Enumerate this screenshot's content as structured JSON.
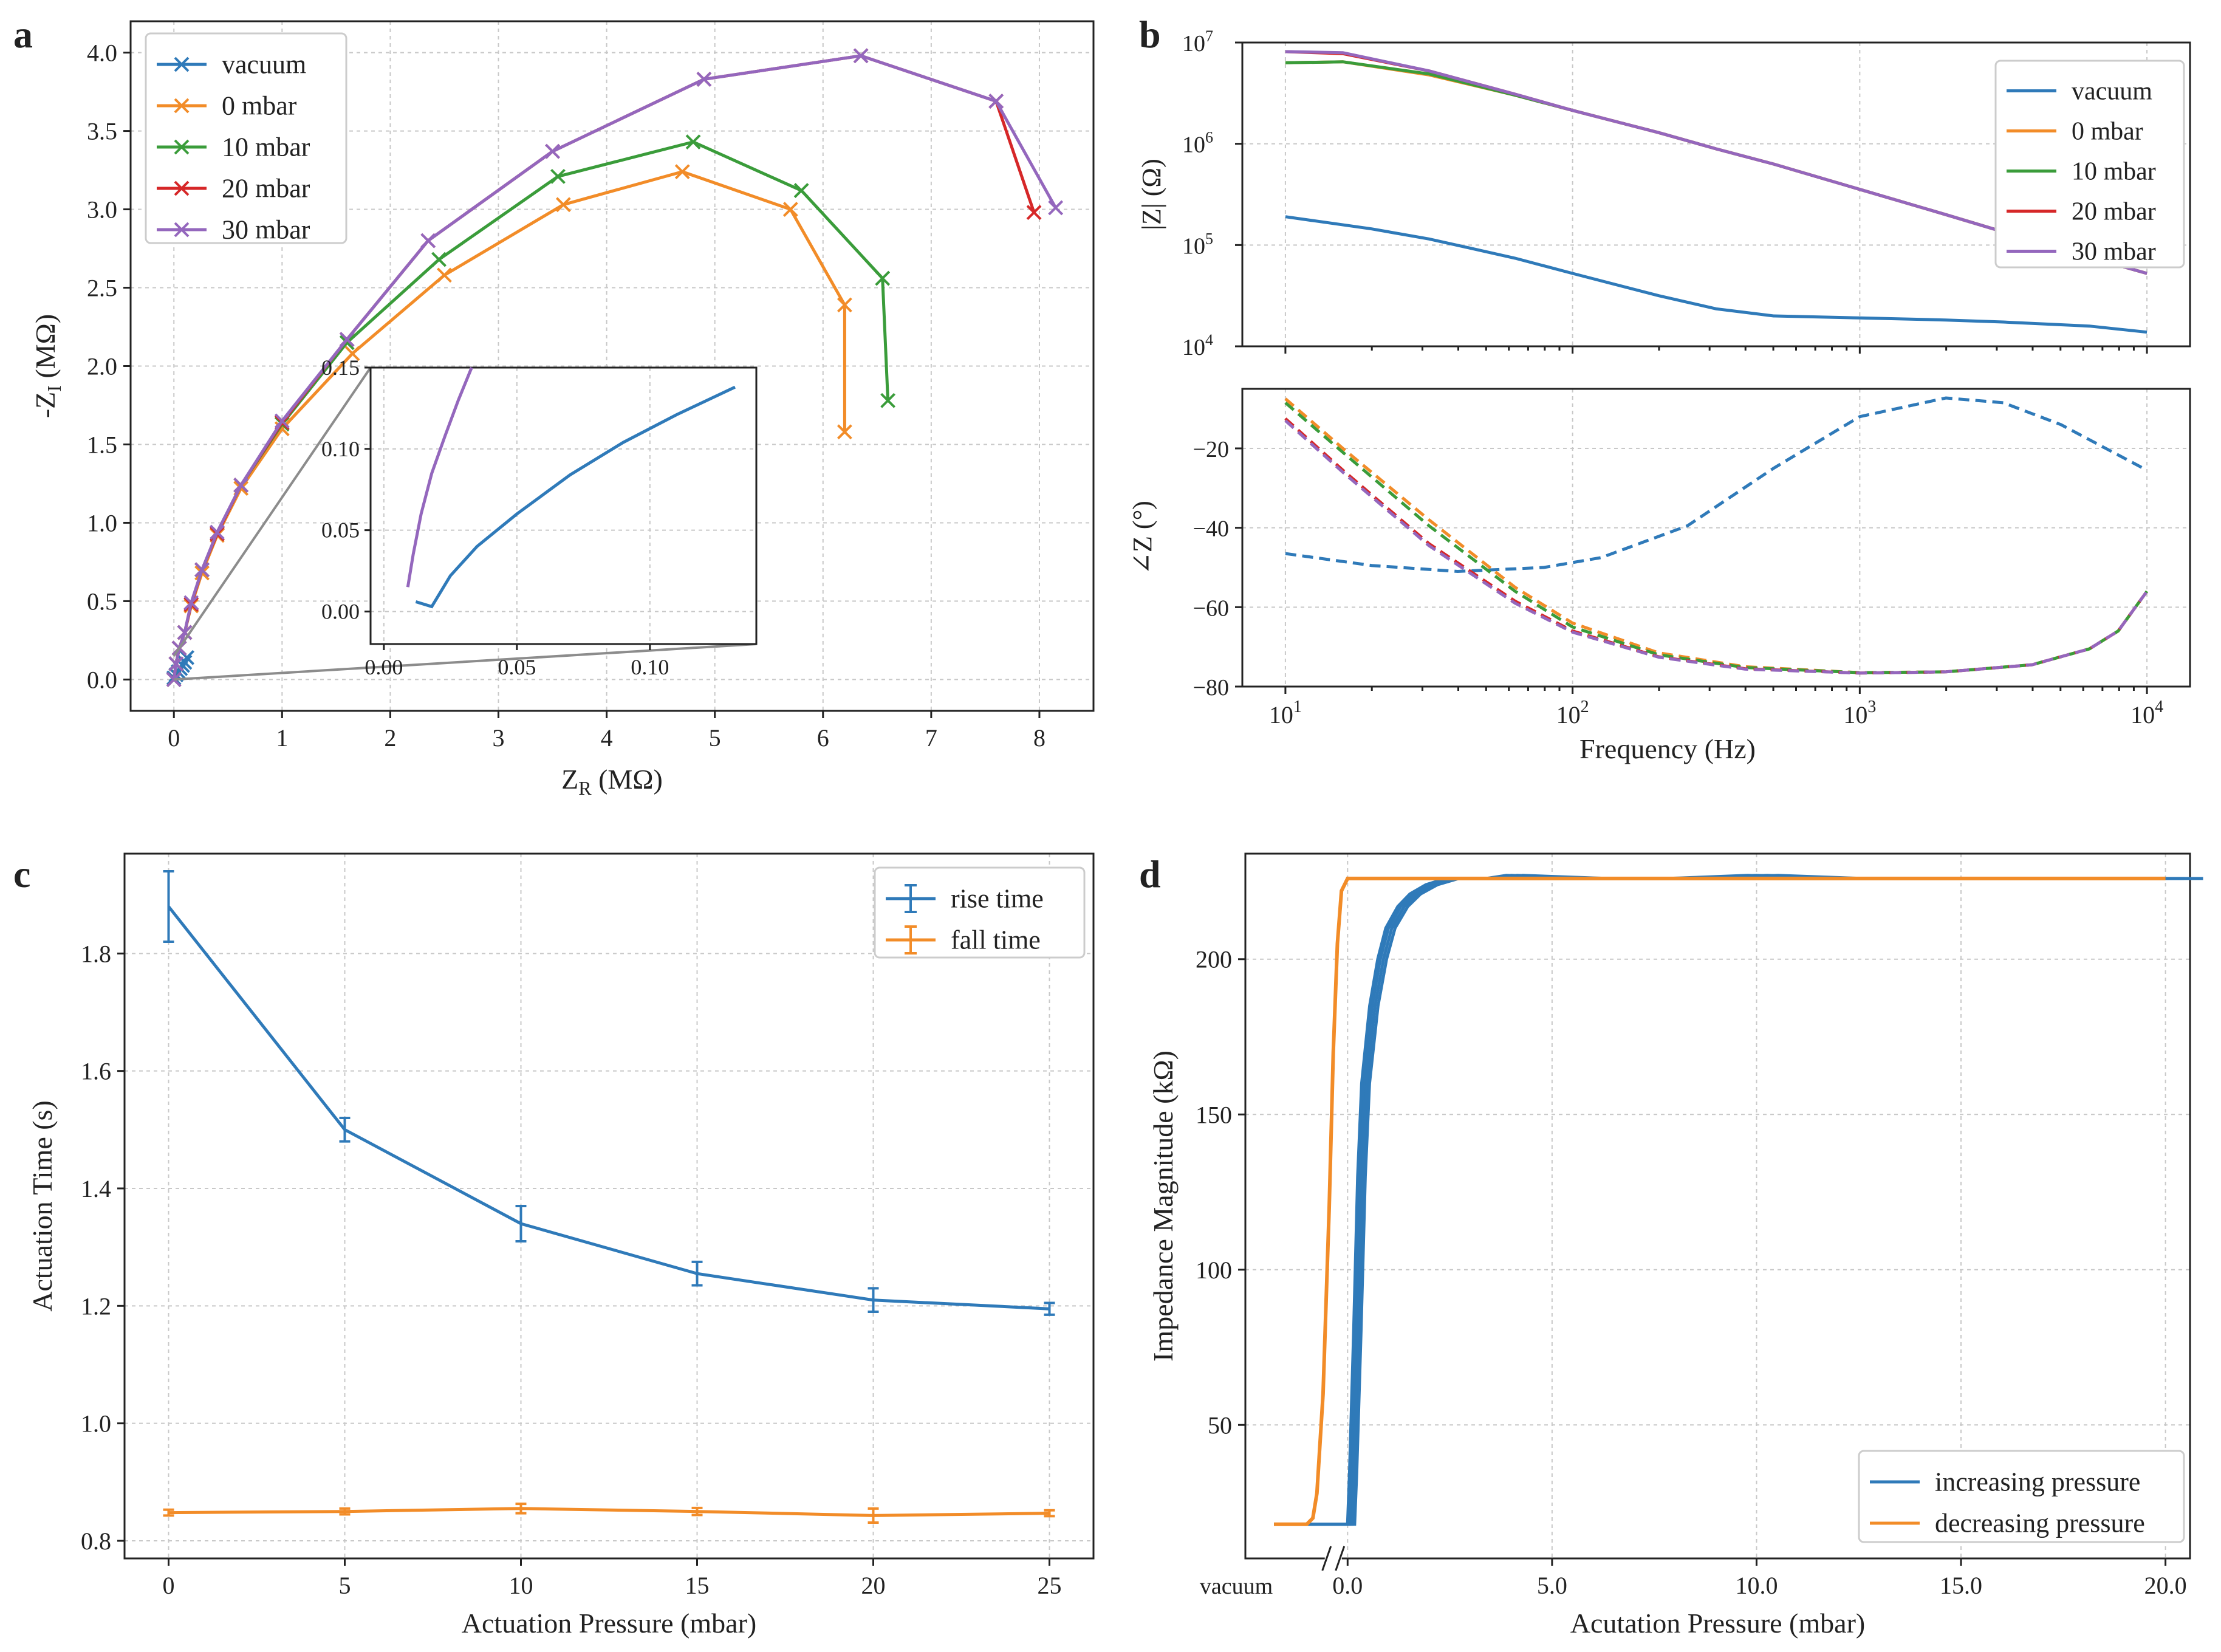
{
  "colors": {
    "blue": "#2f7ab9",
    "orange": "#f28c28",
    "green": "#3a9c3a",
    "red": "#d62728",
    "purple": "#9467bd",
    "gray": "#8c8c8c"
  },
  "chart_data": [
    {
      "panel": "a",
      "type": "line",
      "xlabel": "Z",
      "xlabel_sub": "R",
      "xlabel_unit": " (MΩ)",
      "ylabel": "-Z",
      "ylabel_sub": "I",
      "ylabel_unit": " (MΩ)",
      "xlim": [
        -0.4,
        8.5
      ],
      "ylim": [
        -0.2,
        4.2
      ],
      "xticks": [
        0,
        1,
        2,
        3,
        4,
        5,
        6,
        7,
        8
      ],
      "yticks": [
        0.0,
        0.5,
        1.0,
        1.5,
        2.0,
        2.5,
        3.0,
        3.5,
        4.0
      ],
      "xtick_labels": [
        "0",
        "1",
        "2",
        "3",
        "4",
        "5",
        "6",
        "7",
        "8"
      ],
      "ytick_labels": [
        "0.0",
        "0.5",
        "1.0",
        "1.5",
        "2.0",
        "2.5",
        "3.0",
        "3.5",
        "4.0"
      ],
      "legend_position": "top-left",
      "series": [
        {
          "name": "vacuum",
          "color": "blue",
          "x": [
            0.0,
            0.02,
            0.04,
            0.06,
            0.08,
            0.1,
            0.12
          ],
          "y": [
            0.01,
            0.03,
            0.05,
            0.07,
            0.09,
            0.11,
            0.14
          ]
        },
        {
          "name": "0 mbar",
          "color": "orange",
          "x": [
            0.0,
            0.02,
            0.05,
            0.1,
            0.16,
            0.26,
            0.4,
            0.62,
            1.0,
            1.65,
            2.5,
            3.6,
            4.7,
            5.7,
            6.2,
            6.2
          ],
          "y": [
            0.0,
            0.1,
            0.2,
            0.3,
            0.47,
            0.68,
            0.92,
            1.22,
            1.6,
            2.08,
            2.58,
            3.03,
            3.24,
            3.0,
            2.39,
            1.58
          ]
        },
        {
          "name": "10 mbar",
          "color": "green",
          "x": [
            0.0,
            0.02,
            0.05,
            0.1,
            0.16,
            0.26,
            0.4,
            0.62,
            1.0,
            1.6,
            2.45,
            3.55,
            4.8,
            5.8,
            6.55,
            6.6
          ],
          "y": [
            0.0,
            0.1,
            0.2,
            0.3,
            0.48,
            0.7,
            0.93,
            1.24,
            1.63,
            2.15,
            2.68,
            3.21,
            3.43,
            3.12,
            2.56,
            1.78
          ]
        },
        {
          "name": "20 mbar",
          "color": "red",
          "x": [
            0.0,
            0.02,
            0.05,
            0.1,
            0.16,
            0.26,
            0.4,
            0.62,
            1.0,
            1.6,
            2.35,
            3.5,
            4.9,
            6.35,
            7.6,
            7.95
          ],
          "y": [
            0.0,
            0.1,
            0.2,
            0.3,
            0.48,
            0.7,
            0.93,
            1.24,
            1.64,
            2.17,
            2.8,
            3.37,
            3.83,
            3.98,
            3.69,
            2.98
          ]
        },
        {
          "name": "30 mbar",
          "color": "purple",
          "x": [
            0.0,
            0.02,
            0.05,
            0.1,
            0.16,
            0.26,
            0.4,
            0.62,
            1.0,
            1.6,
            2.35,
            3.5,
            4.9,
            6.35,
            7.6,
            8.15
          ],
          "y": [
            0.0,
            0.1,
            0.2,
            0.3,
            0.49,
            0.7,
            0.94,
            1.24,
            1.65,
            2.17,
            2.8,
            3.37,
            3.83,
            3.98,
            3.69,
            3.01
          ]
        }
      ],
      "inset": {
        "xlim": [
          -0.005,
          0.14
        ],
        "ylim": [
          -0.02,
          0.15
        ],
        "xticks": [
          0.0,
          0.05,
          0.1
        ],
        "yticks": [
          0.0,
          0.05,
          0.1,
          0.15
        ],
        "xtick_labels": [
          "0.00",
          "0.05",
          "0.10"
        ],
        "ytick_labels": [
          "0.00",
          "0.05",
          "0.10",
          "0.15"
        ],
        "zoom_region_x": [
          0.0,
          0.14
        ],
        "zoom_region_y": [
          0.0,
          0.15
        ],
        "series": [
          {
            "name": "30 mbar",
            "color": "purple",
            "x": [
              0.009,
              0.011,
              0.014,
              0.018,
              0.023,
              0.028,
              0.033
            ],
            "y": [
              0.015,
              0.035,
              0.06,
              0.085,
              0.108,
              0.13,
              0.15
            ]
          },
          {
            "name": "vacuum",
            "color": "blue",
            "x": [
              0.012,
              0.018,
              0.025,
              0.035,
              0.05,
              0.07,
              0.09,
              0.11,
              0.132
            ],
            "y": [
              0.006,
              0.003,
              0.022,
              0.04,
              0.06,
              0.084,
              0.104,
              0.121,
              0.138
            ]
          }
        ]
      }
    },
    {
      "panel": "b",
      "type": "line",
      "subplots": [
        {
          "ylabel": "|Z| (Ω)",
          "yscale": "log",
          "ylim_log10": [
            4,
            7
          ],
          "yticks_log10": [
            4,
            5,
            6,
            7
          ],
          "ytick_labels": [
            "10",
            "10",
            "10",
            "10"
          ],
          "ytick_exponents": [
            "4",
            "5",
            "6",
            "7"
          ],
          "legend_position": "top-right",
          "series": [
            {
              "name": "vacuum",
              "color": "blue",
              "x_log10": [
                1.0,
                1.3,
                1.5,
                1.8,
                2.0,
                2.3,
                2.5,
                2.7,
                3.0,
                3.3,
                3.5,
                3.8,
                4.0
              ],
              "y_log10": [
                5.28,
                5.16,
                5.06,
                4.87,
                4.72,
                4.5,
                4.37,
                4.3,
                4.28,
                4.26,
                4.24,
                4.2,
                4.14
              ]
            },
            {
              "name": "0 mbar",
              "color": "orange",
              "x_log10": [
                1.0,
                1.2,
                1.5,
                1.8,
                2.0,
                2.3,
                2.5,
                2.7,
                3.0,
                3.3,
                3.5,
                3.8,
                4.0
              ],
              "y_log10": [
                6.8,
                6.81,
                6.68,
                6.48,
                6.33,
                6.11,
                5.95,
                5.8,
                5.55,
                5.3,
                5.13,
                4.88,
                4.72
              ]
            },
            {
              "name": "10 mbar",
              "color": "green",
              "x_log10": [
                1.0,
                1.2,
                1.5,
                1.8,
                2.0,
                2.3,
                2.5,
                2.7,
                3.0,
                3.3,
                3.5,
                3.8,
                4.0
              ],
              "y_log10": [
                6.8,
                6.81,
                6.69,
                6.48,
                6.33,
                6.11,
                5.95,
                5.8,
                5.55,
                5.3,
                5.13,
                4.88,
                4.72
              ]
            },
            {
              "name": "20 mbar",
              "color": "red",
              "x_log10": [
                1.0,
                1.2,
                1.5,
                1.8,
                2.0,
                2.3,
                2.5,
                2.7,
                3.0,
                3.3,
                3.5,
                3.8,
                4.0
              ],
              "y_log10": [
                6.91,
                6.89,
                6.72,
                6.49,
                6.33,
                6.11,
                5.95,
                5.8,
                5.55,
                5.3,
                5.13,
                4.88,
                4.72
              ]
            },
            {
              "name": "30 mbar",
              "color": "purple",
              "x_log10": [
                1.0,
                1.2,
                1.5,
                1.8,
                2.0,
                2.3,
                2.5,
                2.7,
                3.0,
                3.3,
                3.5,
                3.8,
                4.0
              ],
              "y_log10": [
                6.91,
                6.9,
                6.72,
                6.49,
                6.33,
                6.11,
                5.95,
                5.8,
                5.55,
                5.3,
                5.13,
                4.88,
                4.72
              ]
            }
          ]
        },
        {
          "ylabel": "∠Z (°)",
          "ylim": [
            -80,
            -5
          ],
          "yticks": [
            -80,
            -60,
            -40,
            -20
          ],
          "ytick_labels": [
            "−80",
            "−60",
            "−40",
            "−20"
          ],
          "line_style": "dashed",
          "series": [
            {
              "name": "vacuum",
              "color": "blue",
              "x_log10": [
                1.0,
                1.3,
                1.6,
                1.9,
                2.1,
                2.4,
                2.7,
                3.0,
                3.3,
                3.5,
                3.7,
                4.0
              ],
              "y": [
                -46.5,
                -49.5,
                -51,
                -50,
                -47.5,
                -39.5,
                -25,
                -12,
                -7.3,
                -8.5,
                -14,
                -25.5
              ]
            },
            {
              "name": "0 mbar",
              "color": "orange",
              "x_log10": [
                1.0,
                1.2,
                1.5,
                1.8,
                2.0,
                2.3,
                2.6,
                3.0,
                3.3,
                3.6,
                3.8,
                3.9,
                4.0
              ],
              "y": [
                -7.5,
                -20,
                -38,
                -55,
                -64,
                -71.5,
                -75,
                -76.5,
                -76.3,
                -74.5,
                -70.5,
                -66,
                -56
              ]
            },
            {
              "name": "10 mbar",
              "color": "green",
              "x_log10": [
                1.0,
                1.2,
                1.5,
                1.8,
                2.0,
                2.3,
                2.6,
                3.0,
                3.3,
                3.6,
                3.8,
                3.9,
                4.0
              ],
              "y": [
                -8.5,
                -21,
                -39.5,
                -56,
                -65,
                -72,
                -75.2,
                -76.5,
                -76.3,
                -74.5,
                -70.5,
                -66,
                -56
              ]
            },
            {
              "name": "20 mbar",
              "color": "red",
              "x_log10": [
                1.0,
                1.2,
                1.5,
                1.8,
                2.0,
                2.3,
                2.6,
                3.0,
                3.3,
                3.6,
                3.8,
                3.9,
                4.0
              ],
              "y": [
                -12.5,
                -25.5,
                -44,
                -58.5,
                -66,
                -72.5,
                -75.5,
                -76.6,
                -76.3,
                -74.5,
                -70.5,
                -66,
                -56
              ]
            },
            {
              "name": "30 mbar",
              "color": "purple",
              "x_log10": [
                1.0,
                1.2,
                1.5,
                1.8,
                2.0,
                2.3,
                2.6,
                3.0,
                3.3,
                3.6,
                3.8,
                3.9,
                4.0
              ],
              "y": [
                -13,
                -26,
                -44.5,
                -59,
                -66.3,
                -72.6,
                -75.6,
                -76.6,
                -76.3,
                -74.5,
                -70.5,
                -66,
                -56
              ]
            }
          ]
        }
      ],
      "xlabel": "Frequency (Hz)",
      "xscale": "log",
      "xlim_log10": [
        0.85,
        4.15
      ],
      "xticks_log10": [
        1,
        2,
        3,
        4
      ],
      "xtick_labels": [
        "10",
        "10",
        "10",
        "10"
      ],
      "xtick_exponents": [
        "1",
        "2",
        "3",
        "4"
      ]
    },
    {
      "panel": "c",
      "type": "line",
      "xlabel": "Actuation Pressure (mbar)",
      "ylabel": "Actuation Time (s)",
      "xlim": [
        -1.25,
        26.25
      ],
      "ylim": [
        0.77,
        1.97
      ],
      "xticks": [
        0,
        5,
        10,
        15,
        20,
        25
      ],
      "yticks": [
        0.8,
        1.0,
        1.2,
        1.4,
        1.6,
        1.8
      ],
      "xtick_labels": [
        "0",
        "5",
        "10",
        "15",
        "20",
        "25"
      ],
      "ytick_labels": [
        "0.8",
        "1.0",
        "1.2",
        "1.4",
        "1.6",
        "1.8"
      ],
      "legend_position": "top-right",
      "series": [
        {
          "name": "rise time",
          "color": "blue",
          "x": [
            0,
            5,
            10,
            15,
            20,
            25
          ],
          "y": [
            1.88,
            1.5,
            1.34,
            1.255,
            1.21,
            1.195
          ],
          "err": [
            0.06,
            0.02,
            0.03,
            0.02,
            0.02,
            0.01
          ]
        },
        {
          "name": "fall time",
          "color": "orange",
          "x": [
            0,
            5,
            10,
            15,
            20,
            25
          ],
          "y": [
            0.848,
            0.85,
            0.855,
            0.85,
            0.843,
            0.847
          ],
          "err": [
            0.005,
            0.005,
            0.008,
            0.006,
            0.012,
            0.005
          ]
        }
      ]
    },
    {
      "panel": "d",
      "type": "line",
      "xlabel": "Acutation Pressure (mbar)",
      "ylabel": "Impedance Magnitude (kΩ)",
      "xlim": [
        -2.5,
        20.6
      ],
      "ylim": [
        7,
        234
      ],
      "xticks": [
        0.0,
        5.0,
        10.0,
        15.0,
        20.0
      ],
      "yticks": [
        50,
        100,
        150,
        200
      ],
      "xtick_labels": [
        "0.0",
        "5.0",
        "10.0",
        "15.0",
        "20.0"
      ],
      "ytick_labels": [
        "50",
        "100",
        "150",
        "200"
      ],
      "vacuum_label": "vacuum",
      "legend_position": "bottom-right",
      "series": [
        {
          "name": "increasing pressure",
          "color": "blue",
          "x": [
            -1.8,
            -1.0,
            -0.5,
            0.05,
            0.1,
            0.2,
            0.3,
            0.4,
            0.6,
            0.8,
            1.0,
            1.3,
            1.6,
            2.0,
            2.5,
            3.0,
            3.5,
            4.0,
            6.0,
            8.0,
            10.0,
            12.0,
            14.0,
            16.0,
            18.0,
            20.0
          ],
          "y": [
            18,
            18,
            18,
            18,
            35,
            80,
            130,
            160,
            185,
            200,
            210,
            217,
            221,
            224,
            226,
            226,
            226,
            227,
            226,
            226,
            227,
            226,
            226,
            226,
            226,
            226
          ]
        },
        {
          "name": "decreasing pressure",
          "color": "orange",
          "x": [
            -1.8,
            -1.0,
            -0.85,
            -0.75,
            -0.6,
            -0.45,
            -0.35,
            -0.25,
            -0.15,
            0.0,
            5.0,
            10.0,
            15.0,
            20.0
          ],
          "y": [
            18,
            18,
            20,
            28,
            60,
            120,
            170,
            205,
            222,
            226,
            226,
            226,
            226,
            226
          ]
        }
      ]
    }
  ],
  "labels": {
    "a": "a",
    "b": "b",
    "c": "c",
    "d": "d"
  }
}
